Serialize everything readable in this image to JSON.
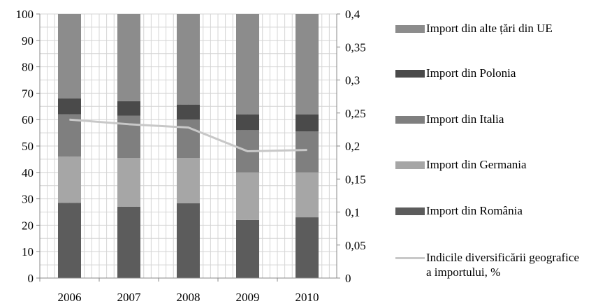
{
  "chart_data": {
    "type": "bar",
    "stacked": true,
    "categories": [
      "2006",
      "2007",
      "2008",
      "2009",
      "2010"
    ],
    "series": [
      {
        "name": "Import din România",
        "color": "#5c5c5c",
        "values": [
          28.5,
          27,
          28.3,
          22,
          23
        ]
      },
      {
        "name": "Import din Germania",
        "color": "#a6a6a6",
        "values": [
          17.5,
          18.5,
          17.2,
          18,
          17
        ]
      },
      {
        "name": "Import din Italia",
        "color": "#7f7f7f",
        "values": [
          16,
          16,
          14.5,
          16,
          15.5
        ]
      },
      {
        "name": "Import din Polonia",
        "color": "#4a4a4a",
        "values": [
          6,
          5.5,
          5.7,
          6,
          6.5
        ]
      },
      {
        "name": "Import din alte țări din UE",
        "color": "#8c8c8c",
        "values": [
          32,
          33,
          34.3,
          38,
          38
        ]
      }
    ],
    "line_series": {
      "name": "Indicile diversificării geografice a importului, %",
      "color": "#c8c8c8",
      "axis": "right",
      "values": [
        0.24,
        0.233,
        0.228,
        0.192,
        0.194
      ]
    },
    "ylim": [
      0,
      100
    ],
    "y_ticks": [
      "0",
      "10",
      "20",
      "30",
      "40",
      "50",
      "60",
      "70",
      "80",
      "90",
      "100"
    ],
    "y2lim": [
      0,
      0.4
    ],
    "y2_ticks": [
      "0",
      "0,05",
      "0,1",
      "0,15",
      "0,2",
      "0,25",
      "0,3",
      "0,35",
      "0,4"
    ],
    "grid": "vertical and horizontal light gray",
    "legend_position": "right",
    "legend_order": [
      {
        "name": "Import din alte țări din UE",
        "kind": "bar",
        "color": "#8c8c8c"
      },
      {
        "name": "Import din Polonia",
        "kind": "bar",
        "color": "#4a4a4a"
      },
      {
        "name": "Import din Italia",
        "kind": "bar",
        "color": "#7f7f7f"
      },
      {
        "name": "Import din Germania",
        "kind": "bar",
        "color": "#a6a6a6"
      },
      {
        "name": "Import din România",
        "kind": "bar",
        "color": "#5c5c5c"
      },
      {
        "name": "Indicile diversificării geografice a importului, %",
        "kind": "line",
        "color": "#c8c8c8"
      }
    ]
  }
}
